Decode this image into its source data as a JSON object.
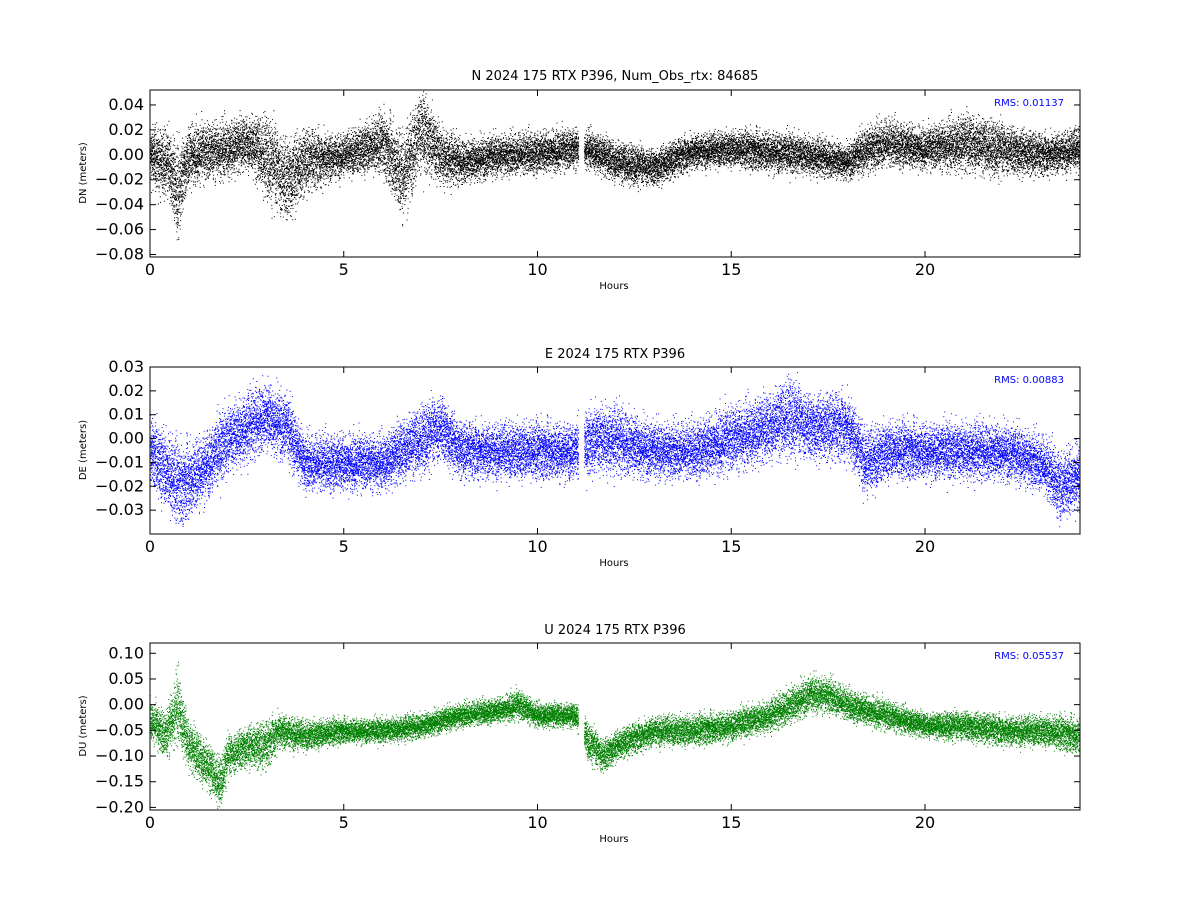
{
  "chart_data": [
    {
      "type": "scatter",
      "title": "N 2024 175 RTX  P396, Num_Obs_rtx: 84685",
      "xlabel": "Hours",
      "ylabel": "DN (meters)",
      "xlim": [
        0,
        24
      ],
      "ylim": [
        -0.082,
        0.052
      ],
      "xticks": [
        0,
        5,
        10,
        15,
        20
      ],
      "yticks": [
        0.04,
        0.02,
        0.0,
        -0.02,
        -0.04,
        -0.06,
        -0.08
      ],
      "ytick_labels": [
        "0.04",
        "0.02",
        "0.00",
        "−0.02",
        "−0.04",
        "−0.06",
        "−0.08"
      ],
      "color": "#000000",
      "rms_label": "RMS:  0.01137",
      "rms_color": "#0000ff",
      "gap_hours": [
        11.05,
        11.2
      ],
      "series": [
        {
          "x": [
            0,
            0.5,
            0.7,
            1,
            2,
            2.5,
            3,
            3.5,
            4,
            5,
            6,
            6.5,
            7,
            7.5,
            8,
            9,
            10,
            11,
            11.3,
            12,
            13,
            14,
            15,
            16,
            17,
            18,
            18.5,
            19,
            20,
            21,
            22,
            23,
            24
          ],
          "y": [
            0.0,
            -0.01,
            -0.03,
            0.0,
            0.005,
            0.01,
            0.0,
            -0.02,
            -0.005,
            0.0,
            0.01,
            -0.015,
            0.02,
            0.0,
            -0.005,
            0.0,
            0.002,
            0.005,
            0.005,
            -0.005,
            -0.01,
            0.003,
            0.005,
            0.003,
            0.0,
            -0.005,
            0.005,
            0.01,
            0.005,
            0.01,
            0.005,
            0.0,
            0.005
          ],
          "spread": [
            0.02,
            0.025,
            0.03,
            0.02,
            0.02,
            0.018,
            0.028,
            0.03,
            0.022,
            0.014,
            0.02,
            0.03,
            0.028,
            0.02,
            0.015,
            0.014,
            0.014,
            0.014,
            0.013,
            0.014,
            0.013,
            0.012,
            0.012,
            0.014,
            0.013,
            0.012,
            0.016,
            0.016,
            0.014,
            0.02,
            0.018,
            0.014,
            0.014
          ]
        }
      ]
    },
    {
      "type": "scatter",
      "title": "E 2024 175 RTX  P396",
      "xlabel": "Hours",
      "ylabel": "DE (meters)",
      "xlim": [
        0,
        24
      ],
      "ylim": [
        -0.04,
        0.03
      ],
      "xticks": [
        0,
        5,
        10,
        15,
        20
      ],
      "yticks": [
        0.03,
        0.02,
        0.01,
        0.0,
        -0.01,
        -0.02,
        -0.03
      ],
      "ytick_labels": [
        "0.03",
        "0.02",
        "0.01",
        "0.00",
        "−0.01",
        "−0.02",
        "−0.03"
      ],
      "color": "#0000ff",
      "rms_label": "RMS:  0.00883",
      "rms_color": "#0000ff",
      "gap_hours": [
        11.05,
        11.2
      ],
      "series": [
        {
          "x": [
            0,
            0.5,
            0.8,
            1.5,
            2,
            2.5,
            3,
            3.5,
            4,
            5,
            6,
            7,
            7.5,
            8,
            9,
            10,
            11,
            11.5,
            12,
            13,
            14,
            15,
            16,
            16.5,
            17,
            18,
            18.5,
            19,
            20,
            21,
            22,
            23,
            23.5,
            24
          ],
          "y": [
            -0.005,
            -0.015,
            -0.02,
            -0.01,
            0.0,
            0.005,
            0.01,
            0.005,
            -0.01,
            -0.01,
            -0.01,
            0.0,
            0.005,
            -0.005,
            -0.005,
            -0.005,
            -0.005,
            0.0,
            0.0,
            -0.005,
            -0.005,
            0.0,
            0.005,
            0.01,
            0.005,
            0.005,
            -0.01,
            -0.005,
            -0.005,
            -0.005,
            -0.005,
            -0.01,
            -0.02,
            -0.015
          ],
          "spread": [
            0.012,
            0.014,
            0.014,
            0.012,
            0.012,
            0.012,
            0.012,
            0.012,
            0.01,
            0.01,
            0.01,
            0.012,
            0.012,
            0.01,
            0.01,
            0.01,
            0.01,
            0.012,
            0.012,
            0.01,
            0.01,
            0.012,
            0.012,
            0.014,
            0.012,
            0.012,
            0.012,
            0.01,
            0.01,
            0.01,
            0.01,
            0.01,
            0.012,
            0.012
          ]
        }
      ]
    },
    {
      "type": "scatter",
      "title": "U 2024 175 RTX  P396",
      "xlabel": "Hours",
      "ylabel": "DU (meters)",
      "xlim": [
        0,
        24
      ],
      "ylim": [
        -0.205,
        0.12
      ],
      "xticks": [
        0,
        5,
        10,
        15,
        20
      ],
      "yticks": [
        0.1,
        0.05,
        0.0,
        -0.05,
        -0.1,
        -0.15,
        -0.2
      ],
      "ytick_labels": [
        "0.10",
        "0.05",
        "0.00",
        "−0.05",
        "−0.10",
        "−0.15",
        "−0.20"
      ],
      "color": "#008000",
      "rms_label": "RMS:  0.05537",
      "rms_color": "#0000ff",
      "gap_hours": [
        11.05,
        11.2
      ],
      "series": [
        {
          "x": [
            0,
            0.4,
            0.7,
            1,
            1.5,
            1.8,
            2,
            2.5,
            3,
            3.3,
            4,
            5,
            6,
            7,
            8,
            9,
            9.5,
            10,
            11,
            11.3,
            11.7,
            12,
            13,
            14,
            15,
            16,
            16.5,
            17,
            17.5,
            18,
            19,
            20,
            21,
            22,
            23,
            24
          ],
          "y": [
            -0.03,
            -0.06,
            0.0,
            -0.08,
            -0.12,
            -0.15,
            -0.1,
            -0.08,
            -0.08,
            -0.05,
            -0.06,
            -0.05,
            -0.05,
            -0.04,
            -0.02,
            -0.01,
            0.0,
            -0.02,
            -0.02,
            -0.07,
            -0.1,
            -0.08,
            -0.05,
            -0.05,
            -0.04,
            -0.02,
            0.0,
            0.02,
            0.02,
            0.0,
            -0.02,
            -0.04,
            -0.04,
            -0.05,
            -0.05,
            -0.06
          ],
          "spread": [
            0.03,
            0.04,
            0.06,
            0.04,
            0.04,
            0.04,
            0.035,
            0.035,
            0.04,
            0.03,
            0.025,
            0.02,
            0.02,
            0.02,
            0.02,
            0.02,
            0.025,
            0.02,
            0.02,
            0.03,
            0.03,
            0.025,
            0.025,
            0.025,
            0.025,
            0.025,
            0.03,
            0.03,
            0.03,
            0.025,
            0.025,
            0.02,
            0.025,
            0.025,
            0.025,
            0.03
          ]
        }
      ]
    }
  ]
}
